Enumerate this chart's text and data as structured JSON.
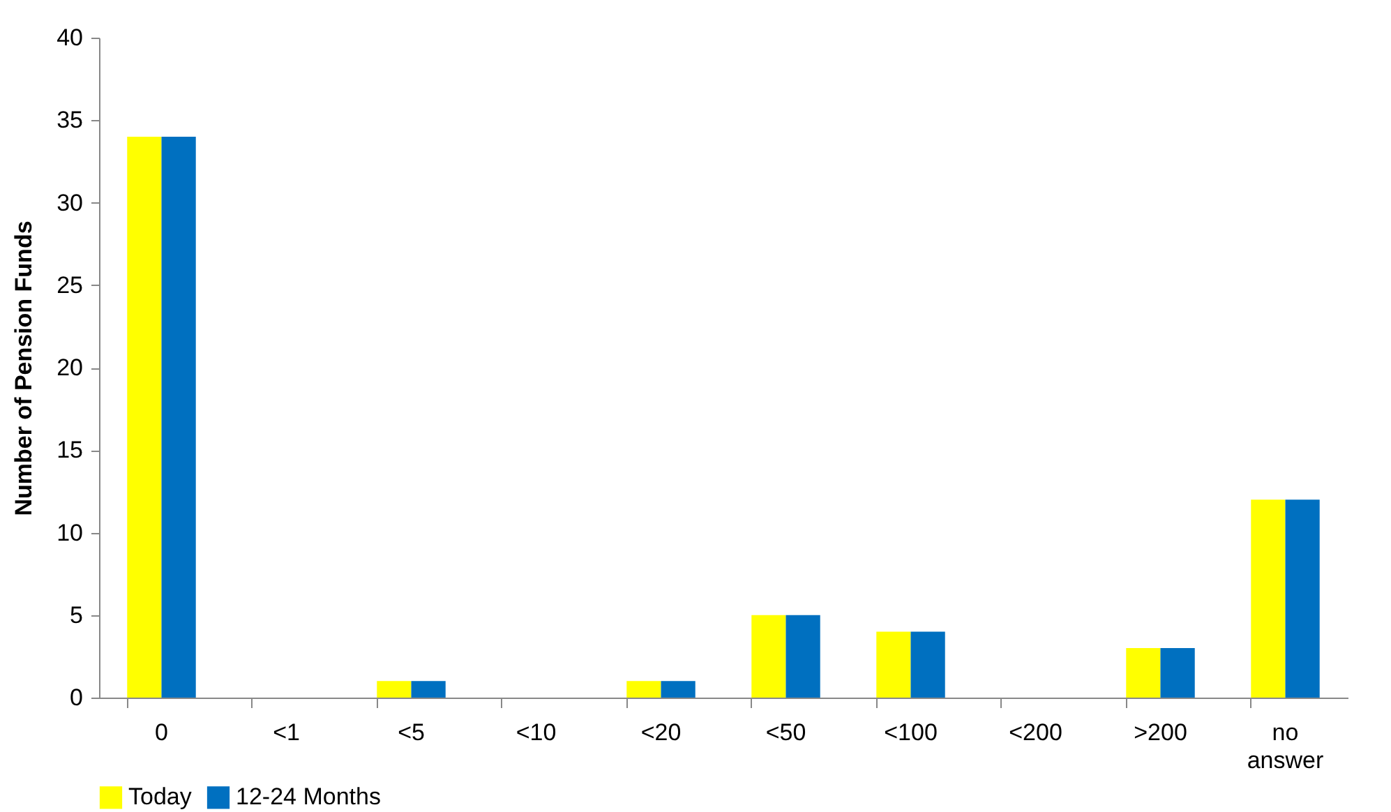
{
  "chart_data": {
    "type": "bar",
    "ylabel": "Number of Pension Funds",
    "categories": [
      "0",
      "<1",
      "<5",
      "<10",
      "<20",
      "<50",
      "<100",
      "<200",
      ">200",
      "no answer"
    ],
    "series": [
      {
        "name": "Today",
        "color": "#ffff00",
        "values": [
          34,
          0,
          1,
          0,
          1,
          5,
          4,
          0,
          3,
          12
        ]
      },
      {
        "name": "12-24 Months",
        "color": "#0070c0",
        "values": [
          34,
          0,
          1,
          0,
          1,
          5,
          4,
          0,
          3,
          12
        ]
      }
    ],
    "ylim": [
      0,
      40
    ],
    "yticks": [
      0,
      5,
      10,
      15,
      20,
      25,
      30,
      35,
      40
    ],
    "grid": false,
    "legend": "bottom"
  }
}
